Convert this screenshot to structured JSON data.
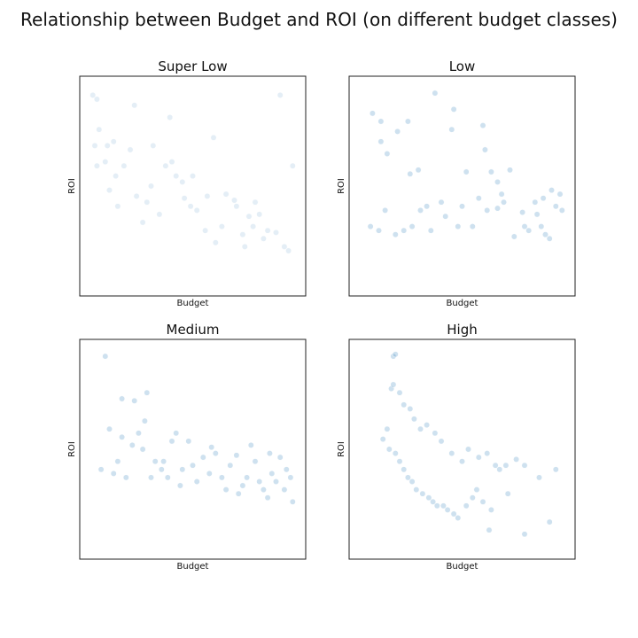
{
  "figure": {
    "title": "Relationship between Budget and ROI (on different budget classes)"
  },
  "colors": {
    "point": "#1f77b4",
    "frame": "#222222",
    "background": "#ffffff"
  },
  "chart_data": [
    {
      "type": "scatter",
      "title": "Super Low",
      "xlabel": "Budget",
      "ylabel": "ROI",
      "xticks": "hidden",
      "yticks": "hidden",
      "grid": false,
      "point_opacity": 0.12,
      "xlim": [
        0,
        100
      ],
      "ylim": [
        0,
        100
      ],
      "points": [
        [
          2,
          95
        ],
        [
          4,
          93
        ],
        [
          3,
          70
        ],
        [
          5,
          78
        ],
        [
          4,
          60
        ],
        [
          9,
          70
        ],
        [
          12,
          72
        ],
        [
          17,
          60
        ],
        [
          13,
          55
        ],
        [
          8,
          62
        ],
        [
          22,
          90
        ],
        [
          23,
          45
        ],
        [
          28,
          42
        ],
        [
          31,
          70
        ],
        [
          39,
          84
        ],
        [
          37,
          60
        ],
        [
          42,
          55
        ],
        [
          45,
          52
        ],
        [
          49,
          40
        ],
        [
          52,
          38
        ],
        [
          57,
          45
        ],
        [
          61,
          22
        ],
        [
          66,
          46
        ],
        [
          71,
          40
        ],
        [
          75,
          20
        ],
        [
          77,
          35
        ],
        [
          79,
          30
        ],
        [
          82,
          36
        ],
        [
          86,
          28
        ],
        [
          92,
          95
        ],
        [
          94,
          20
        ],
        [
          96,
          18
        ],
        [
          80,
          42
        ],
        [
          70,
          43
        ],
        [
          60,
          74
        ],
        [
          50,
          55
        ],
        [
          40,
          62
        ],
        [
          30,
          50
        ],
        [
          20,
          68
        ],
        [
          10,
          48
        ],
        [
          14,
          40
        ],
        [
          26,
          32
        ],
        [
          34,
          36
        ],
        [
          46,
          44
        ],
        [
          56,
          28
        ],
        [
          64,
          30
        ],
        [
          74,
          26
        ],
        [
          84,
          24
        ],
        [
          90,
          27
        ],
        [
          98,
          60
        ]
      ]
    },
    {
      "type": "scatter",
      "title": "Low",
      "xlabel": "Budget",
      "ylabel": "ROI",
      "xticks": "hidden",
      "yticks": "hidden",
      "grid": false,
      "point_opacity": 0.22,
      "xlim": [
        0,
        100
      ],
      "ylim": [
        0,
        100
      ],
      "points": [
        [
          7,
          86
        ],
        [
          11,
          82
        ],
        [
          11,
          72
        ],
        [
          14,
          66
        ],
        [
          19,
          77
        ],
        [
          24,
          82
        ],
        [
          29,
          58
        ],
        [
          37,
          96
        ],
        [
          45,
          78
        ],
        [
          46,
          88
        ],
        [
          52,
          57
        ],
        [
          60,
          80
        ],
        [
          61,
          68
        ],
        [
          64,
          57
        ],
        [
          67,
          52
        ],
        [
          69,
          46
        ],
        [
          67,
          39
        ],
        [
          73,
          58
        ],
        [
          79,
          37
        ],
        [
          85,
          42
        ],
        [
          89,
          44
        ],
        [
          93,
          48
        ],
        [
          95,
          40
        ],
        [
          25,
          56
        ],
        [
          30,
          38
        ],
        [
          33,
          40
        ],
        [
          40,
          42
        ],
        [
          42,
          35
        ],
        [
          50,
          40
        ],
        [
          55,
          30
        ],
        [
          58,
          44
        ],
        [
          62,
          38
        ],
        [
          70,
          42
        ],
        [
          75,
          25
        ],
        [
          80,
          30
        ],
        [
          82,
          28
        ],
        [
          88,
          30
        ],
        [
          90,
          26
        ],
        [
          97,
          46
        ],
        [
          98,
          38
        ],
        [
          6,
          30
        ],
        [
          10,
          28
        ],
        [
          13,
          38
        ],
        [
          18,
          26
        ],
        [
          22,
          28
        ],
        [
          26,
          30
        ],
        [
          35,
          28
        ],
        [
          48,
          30
        ],
        [
          86,
          36
        ],
        [
          92,
          24
        ]
      ]
    },
    {
      "type": "scatter",
      "title": "Medium",
      "xlabel": "Budget",
      "ylabel": "ROI",
      "xticks": "hidden",
      "yticks": "hidden",
      "grid": false,
      "point_opacity": 0.22,
      "xlim": [
        0,
        100
      ],
      "ylim": [
        0,
        100
      ],
      "points": [
        [
          8,
          96
        ],
        [
          16,
          75
        ],
        [
          22,
          74
        ],
        [
          28,
          78
        ],
        [
          27,
          64
        ],
        [
          16,
          56
        ],
        [
          21,
          52
        ],
        [
          40,
          54
        ],
        [
          42,
          58
        ],
        [
          48,
          54
        ],
        [
          55,
          46
        ],
        [
          59,
          51
        ],
        [
          61,
          48
        ],
        [
          68,
          42
        ],
        [
          71,
          47
        ],
        [
          78,
          52
        ],
        [
          80,
          44
        ],
        [
          87,
          48
        ],
        [
          88,
          38
        ],
        [
          92,
          46
        ],
        [
          95,
          40
        ],
        [
          10,
          60
        ],
        [
          24,
          58
        ],
        [
          32,
          44
        ],
        [
          35,
          40
        ],
        [
          38,
          36
        ],
        [
          45,
          40
        ],
        [
          50,
          42
        ],
        [
          64,
          36
        ],
        [
          74,
          32
        ],
        [
          84,
          30
        ],
        [
          90,
          34
        ],
        [
          6,
          40
        ],
        [
          12,
          38
        ],
        [
          14,
          44
        ],
        [
          18,
          36
        ],
        [
          26,
          50
        ],
        [
          30,
          36
        ],
        [
          36,
          44
        ],
        [
          44,
          32
        ],
        [
          52,
          34
        ],
        [
          58,
          38
        ],
        [
          66,
          30
        ],
        [
          72,
          28
        ],
        [
          76,
          36
        ],
        [
          82,
          34
        ],
        [
          86,
          26
        ],
        [
          94,
          30
        ],
        [
          97,
          36
        ],
        [
          98,
          24
        ]
      ]
    },
    {
      "type": "scatter",
      "title": "High",
      "xlabel": "Budget",
      "ylabel": "ROI",
      "xticks": "hidden",
      "yticks": "hidden",
      "grid": false,
      "point_opacity": 0.22,
      "xlim": [
        0,
        100
      ],
      "ylim": [
        0,
        100
      ],
      "points": [
        [
          17,
          96
        ],
        [
          18,
          97
        ],
        [
          16,
          80
        ],
        [
          17,
          82
        ],
        [
          20,
          78
        ],
        [
          22,
          72
        ],
        [
          25,
          70
        ],
        [
          27,
          65
        ],
        [
          30,
          60
        ],
        [
          33,
          62
        ],
        [
          37,
          58
        ],
        [
          40,
          54
        ],
        [
          45,
          48
        ],
        [
          50,
          44
        ],
        [
          53,
          50
        ],
        [
          58,
          46
        ],
        [
          62,
          48
        ],
        [
          66,
          42
        ],
        [
          68,
          40
        ],
        [
          71,
          42
        ],
        [
          76,
          45
        ],
        [
          80,
          42
        ],
        [
          87,
          36
        ],
        [
          95,
          40
        ],
        [
          92,
          14
        ],
        [
          80,
          8
        ],
        [
          63,
          10
        ],
        [
          14,
          60
        ],
        [
          12,
          55
        ],
        [
          15,
          50
        ],
        [
          18,
          48
        ],
        [
          20,
          44
        ],
        [
          22,
          40
        ],
        [
          24,
          36
        ],
        [
          26,
          34
        ],
        [
          28,
          30
        ],
        [
          31,
          28
        ],
        [
          34,
          26
        ],
        [
          36,
          24
        ],
        [
          38,
          22
        ],
        [
          41,
          22
        ],
        [
          43,
          20
        ],
        [
          46,
          18
        ],
        [
          48,
          16
        ],
        [
          52,
          22
        ],
        [
          55,
          26
        ],
        [
          57,
          30
        ],
        [
          60,
          24
        ],
        [
          64,
          20
        ],
        [
          72,
          28
        ]
      ]
    }
  ]
}
